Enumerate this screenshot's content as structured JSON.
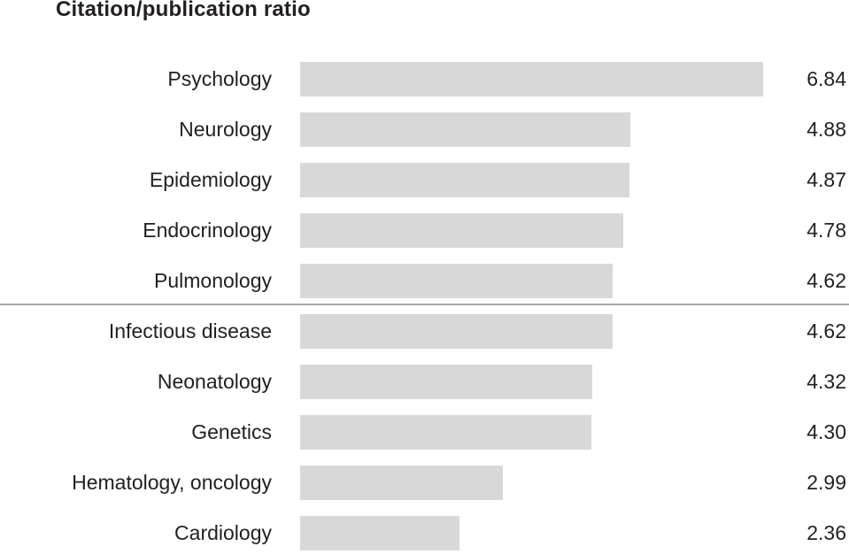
{
  "title": "Citation/publication ratio",
  "chart_data": {
    "type": "bar",
    "orientation": "horizontal",
    "title": "Citation/publication ratio",
    "categories": [
      "Psychology",
      "Neurology",
      "Epidemiology",
      "Endocrinology",
      "Pulmonology",
      "Infectious disease",
      "Neonatology",
      "Genetics",
      "Hematology, oncology",
      "Cardiology"
    ],
    "values": [
      6.84,
      4.88,
      4.87,
      4.78,
      4.62,
      4.62,
      4.32,
      4.3,
      2.99,
      2.36
    ],
    "value_labels": [
      "6.84",
      "4.88",
      "4.87",
      "4.78",
      "4.62",
      "4.62",
      "4.32",
      "4.30",
      "2.99",
      "2.36"
    ],
    "xlabel": "",
    "ylabel": "",
    "xlim": [
      0,
      6.95
    ],
    "grid": false,
    "legend": false,
    "separator_after_index": 4,
    "bar_color": "#d8d8d8",
    "divider_color": "#a7a7ab",
    "text_color": "#231f20"
  }
}
